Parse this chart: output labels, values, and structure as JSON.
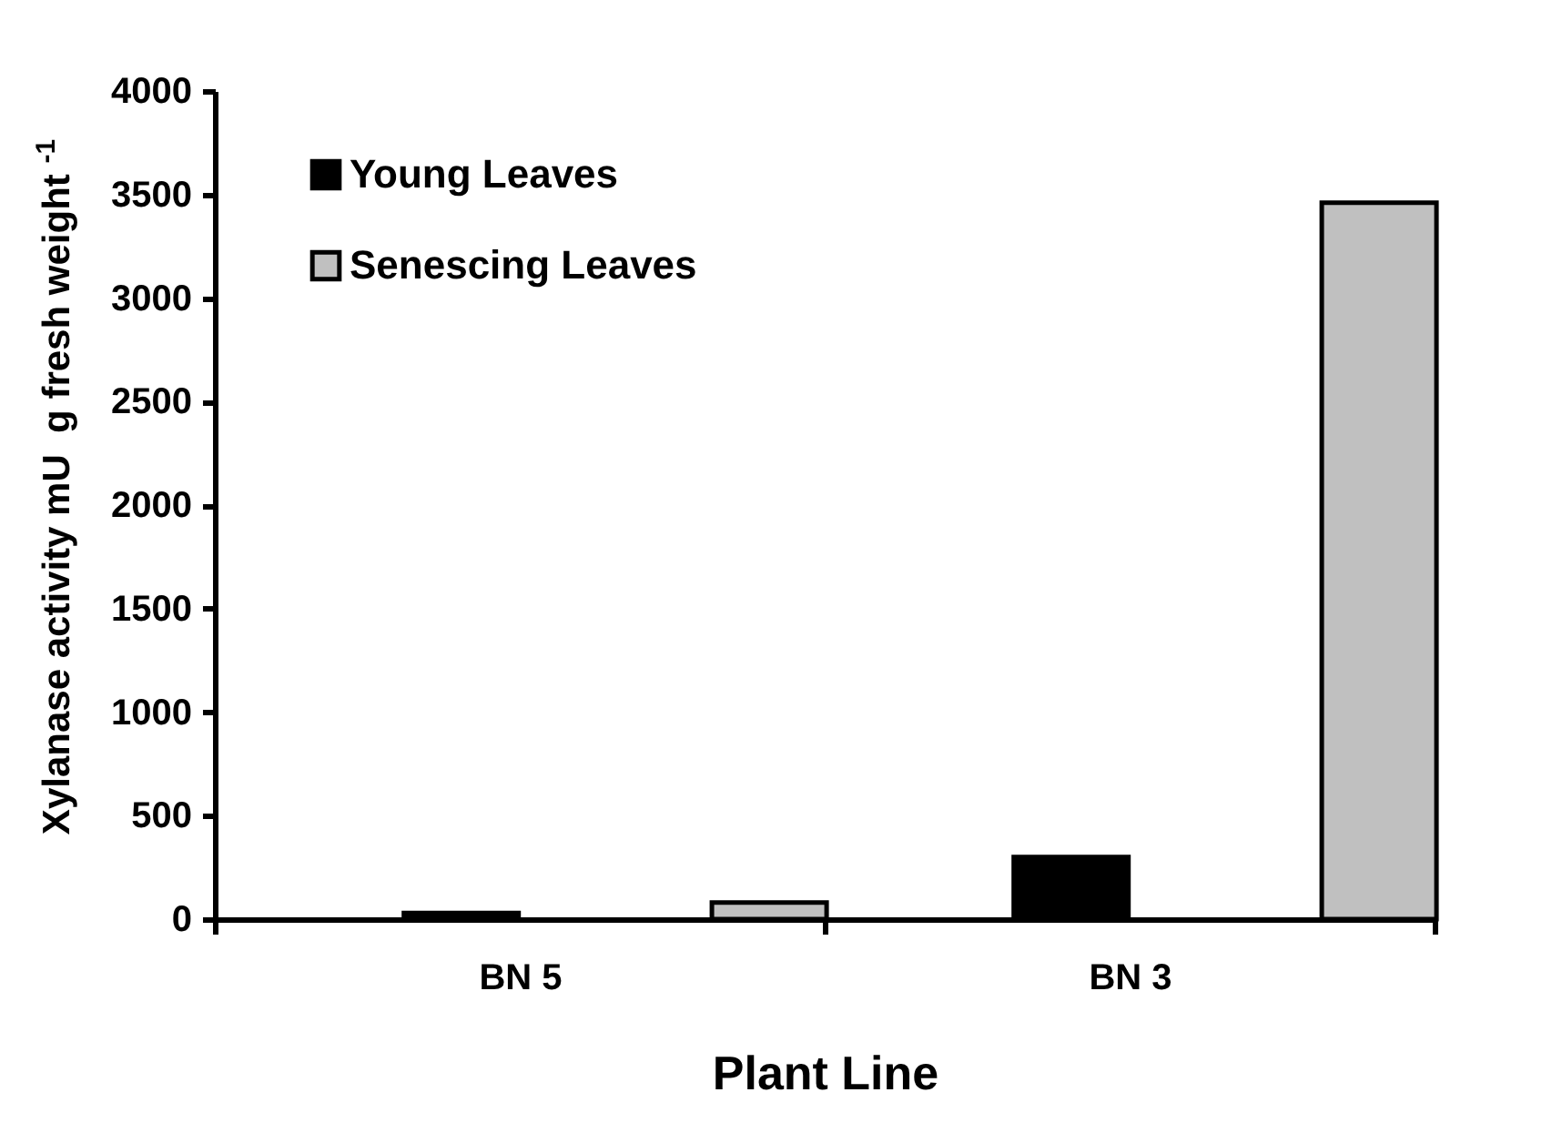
{
  "chart_data": {
    "type": "bar",
    "xlabel": "Plant Line",
    "ylabel": "Xylanase activity mU  g fresh weight $^{-1}$",
    "categories": [
      "BN 5",
      "BN 3"
    ],
    "series": [
      {
        "name": "Young Leaves",
        "color": "#000000",
        "values": [
          30,
          300
        ]
      },
      {
        "name": "Senescing Leaves",
        "color": "#c0c0c0",
        "values": [
          80,
          3460
        ]
      }
    ],
    "ylim": [
      0,
      4000
    ],
    "yticks": [
      0,
      500,
      1000,
      1500,
      2000,
      2500,
      3000,
      3500,
      4000
    ],
    "grid": false,
    "legend": "top left"
  }
}
